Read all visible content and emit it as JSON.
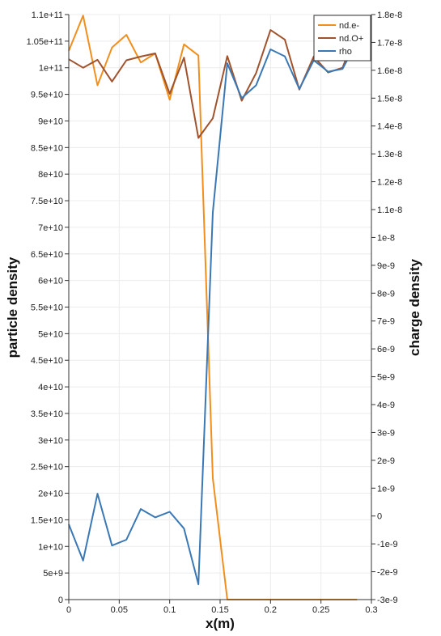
{
  "chart_data": {
    "type": "line",
    "xlabel": "x(m)",
    "ylabel_left": "particle density",
    "ylabel_right": "charge density",
    "xlim": [
      0,
      0.3
    ],
    "ylim_left": [
      0,
      110000000000.0
    ],
    "ylim_right": [
      -3e-09,
      1.8e-08
    ],
    "x_ticks": [
      "0",
      "0.05",
      "0.1",
      "0.15",
      "0.2",
      "0.25",
      "0.3"
    ],
    "y_left_ticks": [
      "0",
      "5e+9",
      "1e+10",
      "1.5e+10",
      "2e+10",
      "2.5e+10",
      "3e+10",
      "3.5e+10",
      "4e+10",
      "4.5e+10",
      "5e+10",
      "5.5e+10",
      "6e+10",
      "6.5e+10",
      "7e+10",
      "7.5e+10",
      "8e+10",
      "8.5e+10",
      "9e+10",
      "9.5e+10",
      "1e+11",
      "1.05e+11",
      "1.1e+11"
    ],
    "y_right_ticks": [
      "-3e-9",
      "-2e-9",
      "-1e-9",
      "0",
      "1e-9",
      "2e-9",
      "3e-9",
      "4e-9",
      "5e-9",
      "6e-9",
      "7e-9",
      "8e-9",
      "9e-9",
      "1e-8",
      "1.1e-8",
      "1.2e-8",
      "1.3e-8",
      "1.4e-8",
      "1.5e-8",
      "1.6e-8",
      "1.7e-8",
      "1.8e-8"
    ],
    "grid": true,
    "legend_position": "top-right",
    "series": [
      {
        "name": "nd.e-",
        "axis": "left",
        "color": "#f28e1c",
        "x": [
          0,
          0.0142,
          0.0285,
          0.0428,
          0.0571,
          0.0714,
          0.0857,
          0.1,
          0.1142,
          0.1285,
          0.1428,
          0.1571,
          0.1714,
          0.1857,
          0.2,
          0.2142,
          0.2285,
          0.2428,
          0.2571,
          0.2714,
          0.2857
        ],
        "values": [
          103200000000.0,
          109800000000.0,
          96700000000.0,
          103800000000.0,
          106200000000.0,
          101000000000.0,
          102700000000.0,
          94000000000.0,
          104400000000.0,
          102300000000.0,
          22800000000.0,
          0,
          0,
          0,
          0,
          0,
          0,
          0,
          0,
          0,
          0
        ]
      },
      {
        "name": "nd.O+",
        "axis": "left",
        "color": "#a0522d",
        "x": [
          0,
          0.0142,
          0.0285,
          0.0428,
          0.0571,
          0.0714,
          0.0857,
          0.1,
          0.1142,
          0.1285,
          0.1428,
          0.1571,
          0.1714,
          0.1857,
          0.2,
          0.2142,
          0.2285,
          0.2428,
          0.2571,
          0.2714,
          0.2857
        ],
        "values": [
          101600000000.0,
          100000000000.0,
          101500000000.0,
          97400000000.0,
          101400000000.0,
          102100000000.0,
          102700000000.0,
          95100000000.0,
          101900000000.0,
          86800000000.0,
          90500000000.0,
          102200000000.0,
          93800000000.0,
          99000000000.0,
          107100000000.0,
          105300000000.0,
          95900000000.0,
          102100000000.0,
          99100000000.0,
          100000000000.0,
          107000000000.0
        ]
      },
      {
        "name": "rho",
        "axis": "right",
        "color": "#3a78b5",
        "x": [
          0,
          0.0142,
          0.0285,
          0.0428,
          0.0571,
          0.0714,
          0.0857,
          0.1,
          0.1142,
          0.1285,
          0.1428,
          0.1571,
          0.1714,
          0.1857,
          0.2,
          0.2142,
          0.2285,
          0.2428,
          0.2571,
          0.2714,
          0.2857
        ],
        "values": [
          -3e-10,
          -1.6e-09,
          8e-10,
          -1.06e-09,
          -8.5e-10,
          2.5e-10,
          -5e-11,
          1.5e-10,
          -4.5e-10,
          -2.45e-09,
          1.09e-08,
          1.625e-08,
          1.5e-08,
          1.546e-08,
          1.675e-08,
          1.65e-08,
          1.533e-08,
          1.636e-08,
          1.595e-08,
          1.605e-08,
          1.702e-08
        ]
      }
    ]
  }
}
